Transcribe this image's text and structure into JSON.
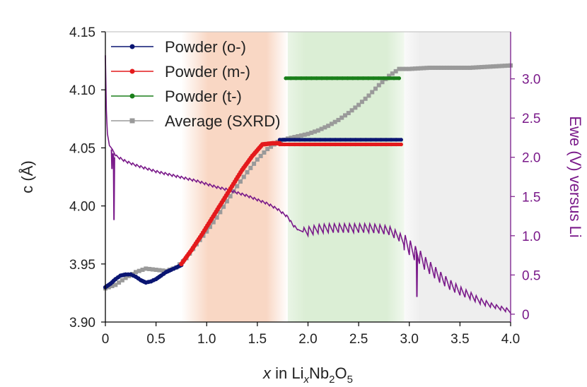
{
  "chart_data": {
    "type": "line",
    "xlabel_parts": {
      "italic_x": "x",
      "text_in": " in Li",
      "sub_x": "x",
      "text_nb": "Nb",
      "sub_2": "2",
      "text_o": "O",
      "sub_5": "5"
    },
    "ylabel": "c (Å)",
    "y2label": "Ewe (V) versus Li",
    "xlim": [
      0,
      4.0
    ],
    "ylim": [
      3.9,
      4.15
    ],
    "y2lim": [
      -0.1,
      3.6
    ],
    "x_ticks": [
      "0",
      "0.5",
      "1.0",
      "1.5",
      "2.0",
      "2.5",
      "3.0",
      "3.5",
      "4.0"
    ],
    "y_ticks": [
      "3.90",
      "3.95",
      "4.00",
      "4.05",
      "4.10",
      "4.15"
    ],
    "y2_ticks": [
      "0",
      "0.5",
      "1.0",
      "1.5",
      "2.0",
      "2.5",
      "3.0"
    ],
    "background_regions": [
      {
        "x_start": 0.75,
        "x_end": 1.8,
        "color": "#f9d7c4",
        "fade": "both"
      },
      {
        "x_start": 1.8,
        "x_end": 2.95,
        "color": "#dbeed5",
        "fade": "left"
      },
      {
        "x_start": 2.95,
        "x_end": 4.0,
        "color": "#eeeeee",
        "fade": "left"
      }
    ],
    "legend_position": "top-left",
    "series": [
      {
        "name": "Powder (o-)",
        "color": "#0a1572",
        "axis": "left",
        "x": [
          0.0,
          0.05,
          0.1,
          0.15,
          0.2,
          0.25,
          0.3,
          0.35,
          0.4,
          0.45,
          0.5,
          0.55,
          0.6,
          0.65,
          0.7,
          0.75
        ],
        "y": [
          3.93,
          3.933,
          3.937,
          3.94,
          3.941,
          3.941,
          3.939,
          3.936,
          3.934,
          3.935,
          3.937,
          3.94,
          3.943,
          3.945,
          3.947,
          3.949
        ]
      },
      {
        "name": "Powder (o-) plateau",
        "color": "#0a1572",
        "axis": "left",
        "x": [
          1.72,
          2.92
        ],
        "y": [
          4.057,
          4.057
        ]
      },
      {
        "name": "Powder (m-)",
        "color": "#e41a1c",
        "axis": "left",
        "x": [
          0.75,
          0.85,
          0.95,
          1.05,
          1.15,
          1.25,
          1.35,
          1.45,
          1.55,
          1.65,
          1.72
        ],
        "y": [
          3.95,
          3.962,
          3.975,
          3.989,
          4.003,
          4.017,
          4.031,
          4.043,
          4.053,
          4.054,
          4.054
        ]
      },
      {
        "name": "Powder (m-) plateau",
        "color": "#e41a1c",
        "axis": "left",
        "x": [
          1.72,
          2.92
        ],
        "y": [
          4.053,
          4.053
        ]
      },
      {
        "name": "Powder (t-)",
        "color": "#1a7f1a",
        "axis": "left",
        "x": [
          1.78,
          2.9
        ],
        "y": [
          4.11,
          4.11
        ]
      },
      {
        "name": "Average (SXRD)",
        "color": "#9a9a9a",
        "axis": "left",
        "x": [
          0.0,
          0.1,
          0.2,
          0.3,
          0.4,
          0.5,
          0.6,
          0.7,
          0.8,
          0.9,
          1.0,
          1.1,
          1.2,
          1.3,
          1.4,
          1.5,
          1.6,
          1.7,
          1.8,
          1.9,
          2.0,
          2.1,
          2.2,
          2.3,
          2.4,
          2.5,
          2.6,
          2.7,
          2.8,
          2.9,
          3.0,
          3.2,
          3.4,
          3.6,
          3.8,
          4.0
        ],
        "y": [
          3.929,
          3.932,
          3.938,
          3.943,
          3.946,
          3.945,
          3.944,
          3.947,
          3.955,
          3.967,
          3.978,
          3.99,
          4.004,
          4.017,
          4.029,
          4.04,
          4.049,
          4.055,
          4.058,
          4.06,
          4.062,
          4.065,
          4.069,
          4.074,
          4.08,
          4.087,
          4.095,
          4.104,
          4.112,
          4.118,
          4.118,
          4.119,
          4.119,
          4.119,
          4.12,
          4.121
        ]
      },
      {
        "name": "Ewe",
        "color": "#7a1a8a",
        "axis": "right",
        "x": [
          0.0,
          0.01,
          0.02,
          0.04,
          0.07,
          0.1,
          0.2,
          0.3,
          0.4,
          0.5,
          0.6,
          0.7,
          0.8,
          0.9,
          1.0,
          1.1,
          1.2,
          1.3,
          1.4,
          1.5,
          1.6,
          1.7,
          1.8,
          1.85,
          1.9,
          1.95,
          2.0,
          2.1,
          2.2,
          2.3,
          2.4,
          2.5,
          2.6,
          2.7,
          2.8,
          2.9,
          3.0,
          3.05,
          3.1,
          3.15,
          3.2,
          3.3,
          3.4,
          3.5,
          3.6,
          3.7,
          3.8,
          3.9,
          4.0
        ],
        "y": [
          3.3,
          2.6,
          2.3,
          2.15,
          2.1,
          2.02,
          1.95,
          1.9,
          1.86,
          1.82,
          1.79,
          1.76,
          1.73,
          1.7,
          1.66,
          1.62,
          1.59,
          1.55,
          1.51,
          1.46,
          1.41,
          1.34,
          1.24,
          1.14,
          1.08,
          1.05,
          1.06,
          1.09,
          1.1,
          1.1,
          1.1,
          1.1,
          1.1,
          1.09,
          1.07,
          0.99,
          0.86,
          0.79,
          0.74,
          0.66,
          0.6,
          0.48,
          0.38,
          0.3,
          0.24,
          0.17,
          0.12,
          0.08,
          0.04
        ]
      }
    ]
  }
}
